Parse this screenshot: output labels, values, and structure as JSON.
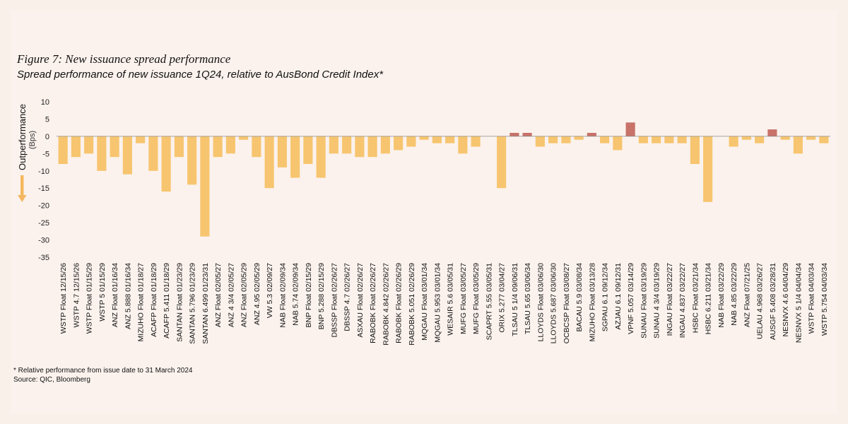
{
  "figure": {
    "title": "Figure 7: New issuance spread performance",
    "subtitle": "Spread performance of new issuance 1Q24, relative to AusBond Credit Index*",
    "footnote": "* Relative performance from issue date to 31 March 2024",
    "source": "Source: QIC, Bloomberg"
  },
  "colors": {
    "negative": "#f7c56f",
    "positive": "#c8726a",
    "background": "#faf0ea",
    "axis": "#888888",
    "arrow": "#f4b860"
  },
  "chart_data": {
    "type": "bar",
    "title": "Spread performance of new issuance 1Q24, relative to AusBond Credit Index*",
    "ylabel": "Outperformance",
    "ylabel_unit": "(Bps)",
    "ylim": [
      -35,
      10
    ],
    "yticks": [
      10,
      5,
      0,
      -5,
      -10,
      -15,
      -20,
      -25,
      -30,
      -35
    ],
    "categories": [
      "WSTP Float 12/15/26",
      "WSTP 4.7 12/15/26",
      "WSTP Float 01/15/29",
      "WSTP 5 01/15/29",
      "ANZ Float 01/16/34",
      "ANZ 5.888 01/16/34",
      "MIZUHO Float 01/18/27",
      "ACAFP Float 01/18/29",
      "ACAFP 5.411 01/18/29",
      "SANTAN Float 01/23/29",
      "SANTAN 5.796 01/23/29",
      "SANTAN 6.499 01/23/31",
      "ANZ Float 02/05/27",
      "ANZ 4 3/4 02/05/27",
      "ANZ Float 02/05/29",
      "ANZ 4.95 02/05/29",
      "VW 5.3 02/09/27",
      "NAB Float 02/09/34",
      "NAB 5.74 02/09/34",
      "BNP Float 02/15/29",
      "BNP 5.288 02/15/29",
      "DBSSP Float 02/26/27",
      "DBSSP 4.7 02/26/27",
      "ASXAU Float 02/26/27",
      "RABOBK Float 02/26/27",
      "RABOBK 4.842 02/26/27",
      "RABOBK Float 02/26/29",
      "RABOBK 5.051 02/26/29",
      "MQGAU Float 03/01/34",
      "MQGAU 5.953 03/01/34",
      "WESAIR 5.6 03/05/31",
      "MUFG Float 03/05/27",
      "MUFG Float 03/05/29",
      "SCAPRT 5.55 03/05/31",
      "ORIX 5.277 03/04/27",
      "TLSAU 5 1/4 09/06/31",
      "TLSAU 5.65 03/06/34",
      "LLOYDS Float 03/06/30",
      "LLOYDS 5.687 03/06/30",
      "OCBCSP Float 03/08/27",
      "BACAU 5.9 03/08/34",
      "MIZUHO Float 03/13/28",
      "SGPAU 6.1 09/12/34",
      "AZJAU 6.1 09/12/31",
      "VPNF 5.057 03/14/29",
      "SUNAU Float 03/19/29",
      "SUNAU 4 3/4 03/19/29",
      "INGAU Float 03/22/27",
      "INGAU 4.837 03/22/27",
      "HSBC Float 03/21/34",
      "HSBC 6.211 03/21/34",
      "NAB Float 03/22/29",
      "NAB 4.85 03/22/29",
      "ANZ Float 07/21/25",
      "UELAU 4.968 03/26/27",
      "AUSGF 5.408 03/28/31",
      "NESNVX 4.6 04/04/29",
      "NESNVX 5 1/4 04/04/34",
      "WSTP Float 04/03/34",
      "WSTP 5.754 04/03/34"
    ],
    "values": [
      -8,
      -6,
      -5,
      -10,
      -6,
      -11,
      -2,
      -10,
      -16,
      -6,
      -14,
      -29,
      -6,
      -5,
      -1,
      -6,
      -15,
      -9,
      -12,
      -8,
      -12,
      -5,
      -5,
      -6,
      -6,
      -5,
      -4,
      -3,
      -1,
      -2,
      -2,
      -5,
      -3,
      0,
      -15,
      1,
      1,
      -3,
      -2,
      -2,
      -1,
      1,
      -2,
      -4,
      4,
      -2,
      -2,
      -2,
      -2,
      -8,
      -19,
      0,
      -3,
      -1,
      -2,
      2,
      -1,
      -5,
      -1,
      -2
    ]
  }
}
